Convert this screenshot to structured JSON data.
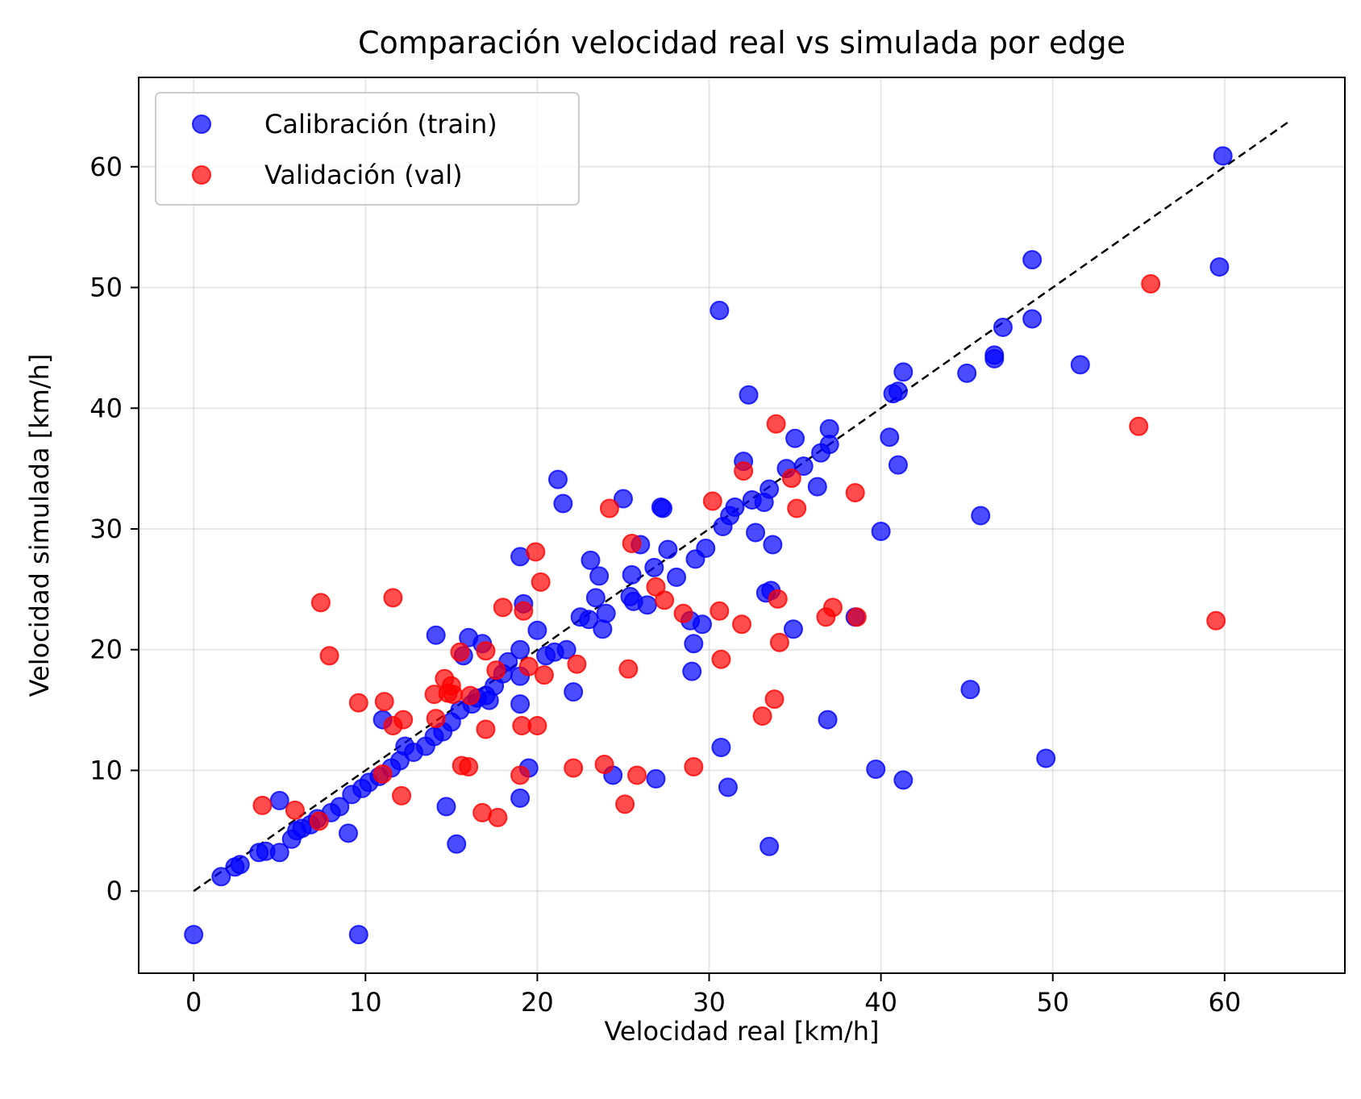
{
  "chart_data": {
    "type": "scatter",
    "title": "Comparación velocidad real vs simulada por edge",
    "xlabel": "Velocidad real [km/h]",
    "ylabel": "Velocidad simulada [km/h]",
    "xlim": [
      -3.2,
      67.0
    ],
    "ylim": [
      -6.8,
      67.4
    ],
    "xticks": [
      0,
      10,
      20,
      30,
      40,
      50,
      60
    ],
    "yticks": [
      0,
      10,
      20,
      30,
      40,
      50,
      60
    ],
    "grid": true,
    "legend_position": "upper-left",
    "reference_line": {
      "name": "y = x",
      "from": [
        0,
        0
      ],
      "to": [
        63.7,
        63.7
      ],
      "style": "dashed",
      "color": "#000000"
    },
    "series": [
      {
        "name": "Calibración (train)",
        "color": "#0000ff",
        "points": [
          [
            0.0,
            -3.6
          ],
          [
            9.6,
            -3.6
          ],
          [
            1.6,
            1.2
          ],
          [
            2.4,
            2.0
          ],
          [
            2.7,
            2.2
          ],
          [
            3.8,
            3.2
          ],
          [
            4.2,
            3.3
          ],
          [
            5.0,
            3.2
          ],
          [
            5.0,
            7.5
          ],
          [
            5.7,
            4.3
          ],
          [
            6.0,
            5.0
          ],
          [
            6.3,
            5.2
          ],
          [
            6.8,
            5.5
          ],
          [
            7.2,
            6.0
          ],
          [
            8.0,
            6.5
          ],
          [
            8.5,
            7.0
          ],
          [
            9.0,
            4.8
          ],
          [
            9.2,
            8.0
          ],
          [
            9.8,
            8.5
          ],
          [
            10.2,
            9.0
          ],
          [
            10.8,
            9.5
          ],
          [
            11.0,
            14.2
          ],
          [
            11.5,
            10.2
          ],
          [
            12.0,
            10.8
          ],
          [
            12.3,
            12.0
          ],
          [
            12.8,
            11.5
          ],
          [
            13.5,
            12.0
          ],
          [
            14.0,
            12.8
          ],
          [
            14.1,
            21.2
          ],
          [
            14.5,
            13.2
          ],
          [
            14.7,
            7.0
          ],
          [
            15.0,
            14.0
          ],
          [
            15.3,
            3.9
          ],
          [
            15.5,
            15.0
          ],
          [
            15.7,
            19.5
          ],
          [
            16.0,
            21.0
          ],
          [
            16.2,
            15.5
          ],
          [
            16.5,
            16.0
          ],
          [
            16.8,
            20.5
          ],
          [
            17.0,
            16.2
          ],
          [
            17.2,
            15.8
          ],
          [
            17.5,
            17.0
          ],
          [
            18.0,
            18.0
          ],
          [
            18.3,
            19.0
          ],
          [
            19.0,
            20.0
          ],
          [
            19.0,
            27.7
          ],
          [
            19.2,
            23.8
          ],
          [
            19.0,
            15.5
          ],
          [
            19.0,
            7.7
          ],
          [
            19.5,
            10.2
          ],
          [
            19.0,
            17.8
          ],
          [
            20.0,
            21.6
          ],
          [
            20.5,
            19.5
          ],
          [
            21.0,
            19.8
          ],
          [
            21.2,
            34.1
          ],
          [
            21.5,
            32.1
          ],
          [
            21.7,
            20.0
          ],
          [
            22.1,
            16.5
          ],
          [
            22.5,
            22.7
          ],
          [
            23.0,
            22.5
          ],
          [
            23.1,
            27.4
          ],
          [
            23.4,
            24.3
          ],
          [
            23.6,
            26.1
          ],
          [
            23.8,
            21.7
          ],
          [
            24.0,
            23.0
          ],
          [
            24.4,
            9.6
          ],
          [
            25.0,
            32.5
          ],
          [
            25.4,
            24.4
          ],
          [
            25.5,
            26.2
          ],
          [
            25.6,
            24.0
          ],
          [
            26.0,
            28.7
          ],
          [
            26.4,
            23.7
          ],
          [
            26.8,
            26.8
          ],
          [
            26.9,
            9.3
          ],
          [
            27.2,
            31.8
          ],
          [
            27.3,
            31.7
          ],
          [
            27.6,
            28.3
          ],
          [
            28.1,
            26.0
          ],
          [
            28.9,
            22.4
          ],
          [
            29.0,
            18.2
          ],
          [
            29.1,
            20.5
          ],
          [
            29.2,
            27.5
          ],
          [
            29.6,
            22.1
          ],
          [
            29.8,
            28.4
          ],
          [
            30.6,
            48.1
          ],
          [
            30.7,
            11.9
          ],
          [
            30.8,
            30.2
          ],
          [
            31.1,
            8.6
          ],
          [
            31.2,
            31.1
          ],
          [
            31.5,
            31.8
          ],
          [
            32.0,
            35.6
          ],
          [
            32.3,
            41.1
          ],
          [
            32.5,
            32.4
          ],
          [
            32.7,
            29.7
          ],
          [
            33.2,
            32.2
          ],
          [
            33.3,
            24.7
          ],
          [
            33.5,
            33.3
          ],
          [
            33.5,
            3.7
          ],
          [
            33.6,
            24.9
          ],
          [
            33.7,
            28.7
          ],
          [
            34.5,
            35.0
          ],
          [
            34.9,
            21.7
          ],
          [
            35.0,
            37.5
          ],
          [
            35.5,
            35.2
          ],
          [
            36.3,
            33.5
          ],
          [
            36.5,
            36.3
          ],
          [
            36.9,
            14.2
          ],
          [
            37.0,
            37.0
          ],
          [
            37.0,
            38.3
          ],
          [
            38.5,
            22.7
          ],
          [
            39.7,
            10.1
          ],
          [
            40.0,
            29.8
          ],
          [
            40.5,
            37.6
          ],
          [
            40.7,
            41.2
          ],
          [
            41.0,
            41.4
          ],
          [
            41.0,
            35.3
          ],
          [
            41.3,
            9.2
          ],
          [
            41.3,
            43.0
          ],
          [
            45.0,
            42.9
          ],
          [
            45.2,
            16.7
          ],
          [
            45.8,
            31.1
          ],
          [
            46.6,
            44.4
          ],
          [
            46.6,
            44.1
          ],
          [
            47.1,
            46.7
          ],
          [
            48.8,
            52.3
          ],
          [
            48.8,
            47.4
          ],
          [
            49.6,
            11.0
          ],
          [
            51.6,
            43.6
          ],
          [
            59.7,
            51.7
          ],
          [
            59.9,
            60.9
          ]
        ]
      },
      {
        "name": "Validación (val)",
        "color": "#ff0000",
        "points": [
          [
            4.0,
            7.1
          ],
          [
            5.9,
            6.7
          ],
          [
            7.3,
            5.8
          ],
          [
            7.4,
            23.9
          ],
          [
            7.9,
            19.5
          ],
          [
            9.6,
            15.6
          ],
          [
            11.0,
            9.7
          ],
          [
            11.1,
            15.7
          ],
          [
            11.6,
            24.3
          ],
          [
            11.6,
            13.7
          ],
          [
            12.1,
            7.9
          ],
          [
            12.2,
            14.2
          ],
          [
            14.0,
            16.3
          ],
          [
            14.1,
            14.3
          ],
          [
            14.6,
            17.6
          ],
          [
            14.8,
            16.4
          ],
          [
            15.0,
            17.0
          ],
          [
            15.1,
            16.3
          ],
          [
            15.5,
            19.8
          ],
          [
            15.6,
            10.4
          ],
          [
            16.0,
            10.3
          ],
          [
            16.1,
            16.2
          ],
          [
            16.8,
            6.5
          ],
          [
            17.0,
            13.4
          ],
          [
            17.0,
            19.9
          ],
          [
            17.6,
            18.3
          ],
          [
            17.7,
            6.1
          ],
          [
            18.0,
            23.5
          ],
          [
            19.0,
            9.6
          ],
          [
            19.1,
            13.7
          ],
          [
            19.2,
            23.2
          ],
          [
            19.5,
            18.6
          ],
          [
            19.9,
            28.1
          ],
          [
            20.0,
            13.7
          ],
          [
            20.2,
            25.6
          ],
          [
            20.4,
            17.9
          ],
          [
            22.1,
            10.2
          ],
          [
            22.3,
            18.8
          ],
          [
            23.9,
            10.5
          ],
          [
            24.2,
            31.7
          ],
          [
            25.1,
            7.2
          ],
          [
            25.3,
            18.4
          ],
          [
            25.5,
            28.8
          ],
          [
            25.8,
            9.6
          ],
          [
            26.9,
            25.2
          ],
          [
            27.4,
            24.1
          ],
          [
            28.5,
            23.0
          ],
          [
            29.1,
            10.3
          ],
          [
            30.2,
            32.3
          ],
          [
            30.6,
            23.2
          ],
          [
            30.7,
            19.2
          ],
          [
            31.9,
            22.1
          ],
          [
            32.0,
            34.8
          ],
          [
            33.1,
            14.5
          ],
          [
            33.8,
            15.9
          ],
          [
            33.9,
            38.7
          ],
          [
            34.0,
            24.2
          ],
          [
            34.1,
            20.6
          ],
          [
            34.8,
            34.2
          ],
          [
            35.1,
            31.7
          ],
          [
            36.8,
            22.7
          ],
          [
            37.2,
            23.5
          ],
          [
            38.5,
            33.0
          ],
          [
            38.6,
            22.7
          ],
          [
            55.0,
            38.5
          ],
          [
            55.7,
            50.3
          ],
          [
            59.5,
            22.4
          ]
        ]
      }
    ]
  }
}
